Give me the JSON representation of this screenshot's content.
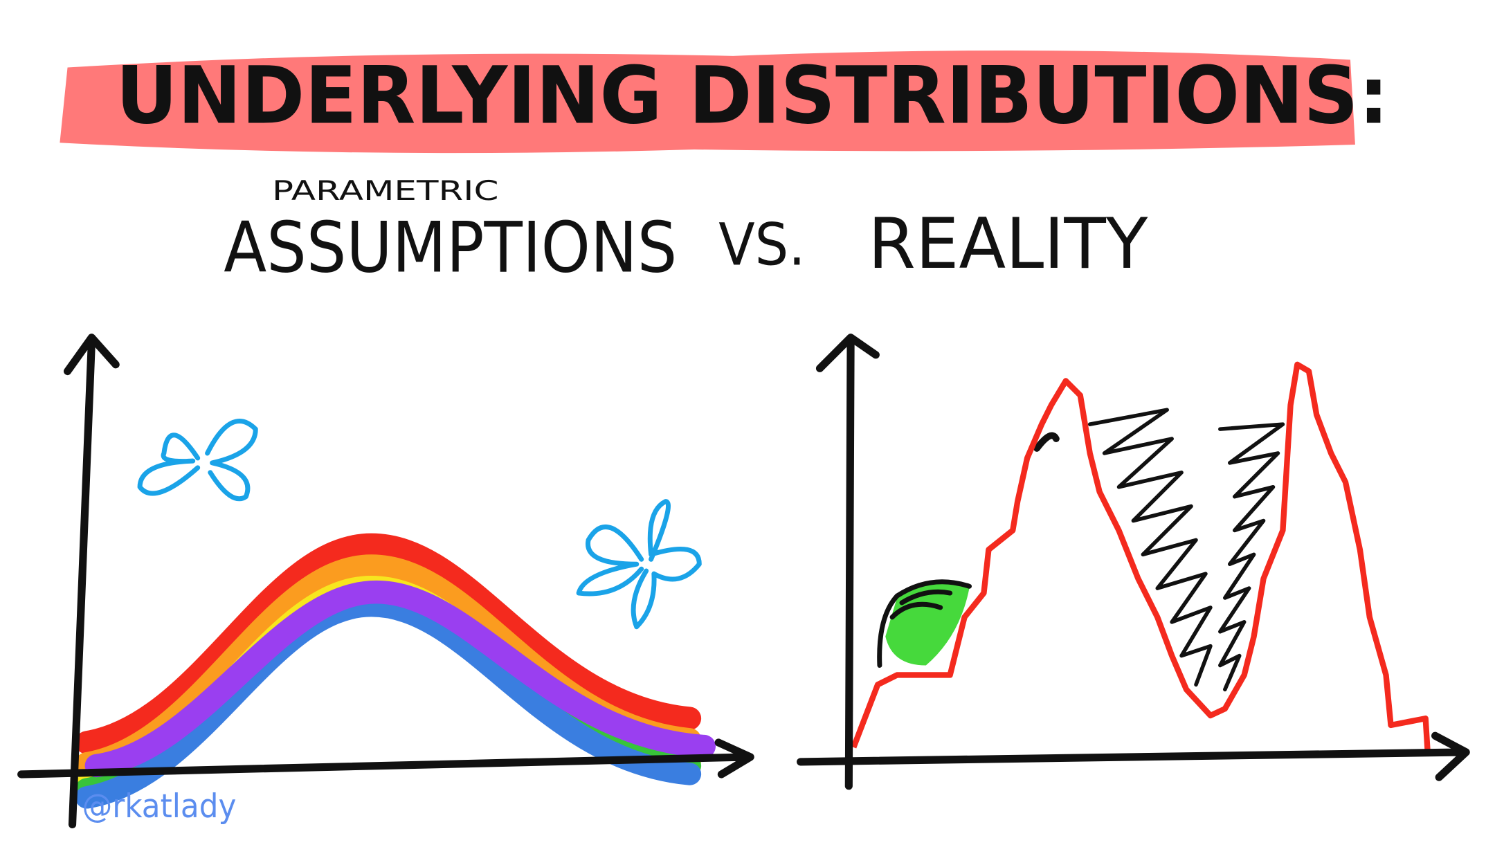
{
  "header": {
    "title": "UNDERLYING DISTRIBUTIONS:"
  },
  "subtitle": {
    "annotation": "PARAMETRIC",
    "assumptions": "ASSUMPTIONS",
    "versus": "VS.",
    "reality": "REALITY"
  },
  "signature": "@rkatlady"
}
